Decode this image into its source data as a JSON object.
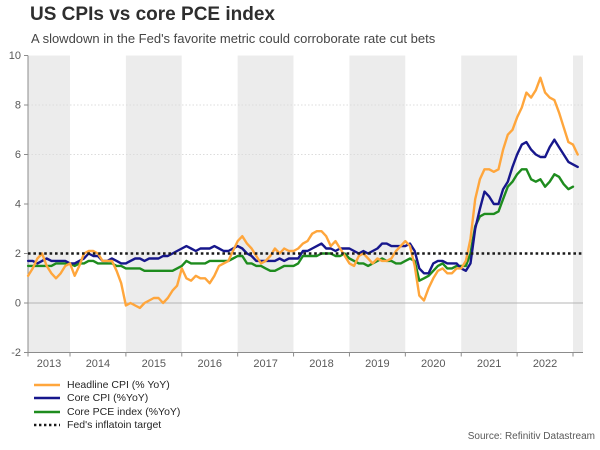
{
  "page": {
    "title": "US CPIs vs core PCE index",
    "subtitle": "A slowdown in the Fed's favorite metric could corroborate rate cut bets",
    "source": "Source: Refinitiv Datastream"
  },
  "chart_data": {
    "type": "line",
    "title": "US CPIs vs core PCE index",
    "subtitle": "A slowdown in the Fed's favorite metric could corroborate rate cut bets",
    "frequency": "monthly",
    "x_start": "2013-04",
    "x_end": "2023-02",
    "x_tick_labels": [
      "2013",
      "2014",
      "2015",
      "2016",
      "2017",
      "2018",
      "2019",
      "2020",
      "2021",
      "2022"
    ],
    "y_axis": {
      "min": -2,
      "max": 10,
      "tick_step": 2,
      "tick_labels": [
        "-2",
        "0",
        "2",
        "4",
        "6",
        "8",
        "10"
      ]
    },
    "plot_background": {
      "band_unit": "year",
      "band_color": "#ECECEC",
      "alt_color": "#FFFFFF"
    },
    "legend_position": "bottom-left",
    "target_line": {
      "label": "Fed's inflatoin target",
      "value": 2,
      "color": "#1A1A1A",
      "style": "dotted"
    },
    "series": [
      {
        "name": "Headline CPI (% YoY)",
        "color": "#FFA63C",
        "start": "2013-04",
        "values": [
          1.1,
          1.4,
          1.8,
          2.0,
          1.5,
          1.2,
          1.0,
          1.2,
          1.5,
          1.6,
          1.1,
          1.5,
          2.0,
          2.1,
          2.1,
          2.0,
          1.7,
          1.7,
          1.7,
          1.3,
          0.8,
          -0.1,
          0.0,
          -0.1,
          -0.2,
          0.0,
          0.1,
          0.2,
          0.2,
          0.0,
          0.2,
          0.5,
          0.7,
          1.4,
          1.0,
          0.9,
          1.1,
          1.0,
          1.0,
          0.8,
          1.1,
          1.5,
          1.6,
          1.7,
          2.1,
          2.5,
          2.7,
          2.4,
          2.2,
          1.9,
          1.6,
          1.7,
          1.9,
          2.2,
          2.0,
          2.2,
          2.1,
          2.1,
          2.2,
          2.4,
          2.5,
          2.8,
          2.9,
          2.9,
          2.7,
          2.3,
          2.5,
          2.2,
          1.9,
          1.6,
          1.5,
          1.9,
          2.0,
          1.8,
          1.6,
          1.8,
          1.7,
          1.7,
          1.8,
          2.1,
          2.3,
          2.5,
          2.3,
          1.5,
          0.3,
          0.1,
          0.6,
          1.0,
          1.3,
          1.4,
          1.2,
          1.2,
          1.4,
          1.4,
          1.7,
          2.6,
          4.2,
          5.0,
          5.4,
          5.4,
          5.3,
          5.4,
          6.2,
          6.8,
          7.0,
          7.5,
          7.9,
          8.5,
          8.3,
          8.6,
          9.1,
          8.5,
          8.3,
          8.2,
          7.7,
          7.1,
          6.5,
          6.4,
          6.0
        ]
      },
      {
        "name": "Core CPI (%YoY)",
        "color": "#17178C",
        "start": "2013-04",
        "values": [
          1.7,
          1.7,
          1.6,
          1.7,
          1.8,
          1.7,
          1.7,
          1.7,
          1.7,
          1.6,
          1.6,
          1.7,
          1.8,
          2.0,
          1.9,
          1.9,
          1.7,
          1.7,
          1.8,
          1.7,
          1.6,
          1.6,
          1.7,
          1.8,
          1.8,
          1.7,
          1.8,
          1.8,
          1.8,
          1.9,
          1.9,
          2.0,
          2.1,
          2.2,
          2.3,
          2.2,
          2.1,
          2.2,
          2.2,
          2.2,
          2.3,
          2.2,
          2.1,
          2.1,
          2.2,
          2.3,
          2.2,
          2.0,
          1.9,
          1.7,
          1.7,
          1.7,
          1.7,
          1.7,
          1.8,
          1.7,
          1.8,
          1.8,
          1.8,
          2.1,
          2.1,
          2.2,
          2.3,
          2.4,
          2.2,
          2.2,
          2.1,
          2.2,
          2.2,
          2.2,
          2.1,
          2.0,
          2.1,
          2.0,
          2.1,
          2.2,
          2.4,
          2.4,
          2.3,
          2.3,
          2.3,
          2.3,
          2.4,
          2.1,
          1.4,
          1.2,
          1.2,
          1.6,
          1.7,
          1.7,
          1.6,
          1.6,
          1.6,
          1.4,
          1.3,
          1.6,
          3.0,
          3.8,
          4.5,
          4.3,
          4.0,
          4.0,
          4.6,
          4.9,
          5.5,
          6.0,
          6.4,
          6.5,
          6.2,
          6.0,
          5.9,
          5.9,
          6.3,
          6.6,
          6.3,
          6.0,
          5.7,
          5.6,
          5.5
        ]
      },
      {
        "name": "Core PCE index (%YoY)",
        "color": "#1E8C1E",
        "start": "2013-04",
        "values": [
          1.5,
          1.5,
          1.5,
          1.5,
          1.5,
          1.5,
          1.6,
          1.6,
          1.6,
          1.6,
          1.5,
          1.6,
          1.6,
          1.7,
          1.7,
          1.6,
          1.6,
          1.6,
          1.6,
          1.5,
          1.5,
          1.4,
          1.4,
          1.4,
          1.4,
          1.3,
          1.3,
          1.3,
          1.3,
          1.3,
          1.3,
          1.3,
          1.4,
          1.5,
          1.7,
          1.6,
          1.6,
          1.6,
          1.6,
          1.7,
          1.7,
          1.7,
          1.7,
          1.7,
          1.8,
          1.9,
          1.9,
          1.6,
          1.6,
          1.5,
          1.5,
          1.4,
          1.3,
          1.3,
          1.4,
          1.5,
          1.5,
          1.5,
          1.6,
          1.9,
          1.9,
          1.9,
          1.9,
          2.0,
          2.0,
          2.0,
          1.9,
          1.9,
          2.0,
          1.8,
          1.7,
          1.6,
          1.6,
          1.5,
          1.6,
          1.7,
          1.8,
          1.7,
          1.7,
          1.6,
          1.6,
          1.7,
          1.8,
          1.7,
          0.9,
          1.0,
          1.1,
          1.3,
          1.5,
          1.6,
          1.4,
          1.4,
          1.5,
          1.5,
          1.5,
          2.0,
          3.1,
          3.5,
          3.6,
          3.6,
          3.6,
          3.7,
          4.2,
          4.7,
          4.9,
          5.2,
          5.4,
          5.4,
          5.0,
          4.9,
          5.0,
          4.7,
          4.9,
          5.2,
          5.1,
          4.8,
          4.6,
          4.7
        ]
      }
    ]
  }
}
